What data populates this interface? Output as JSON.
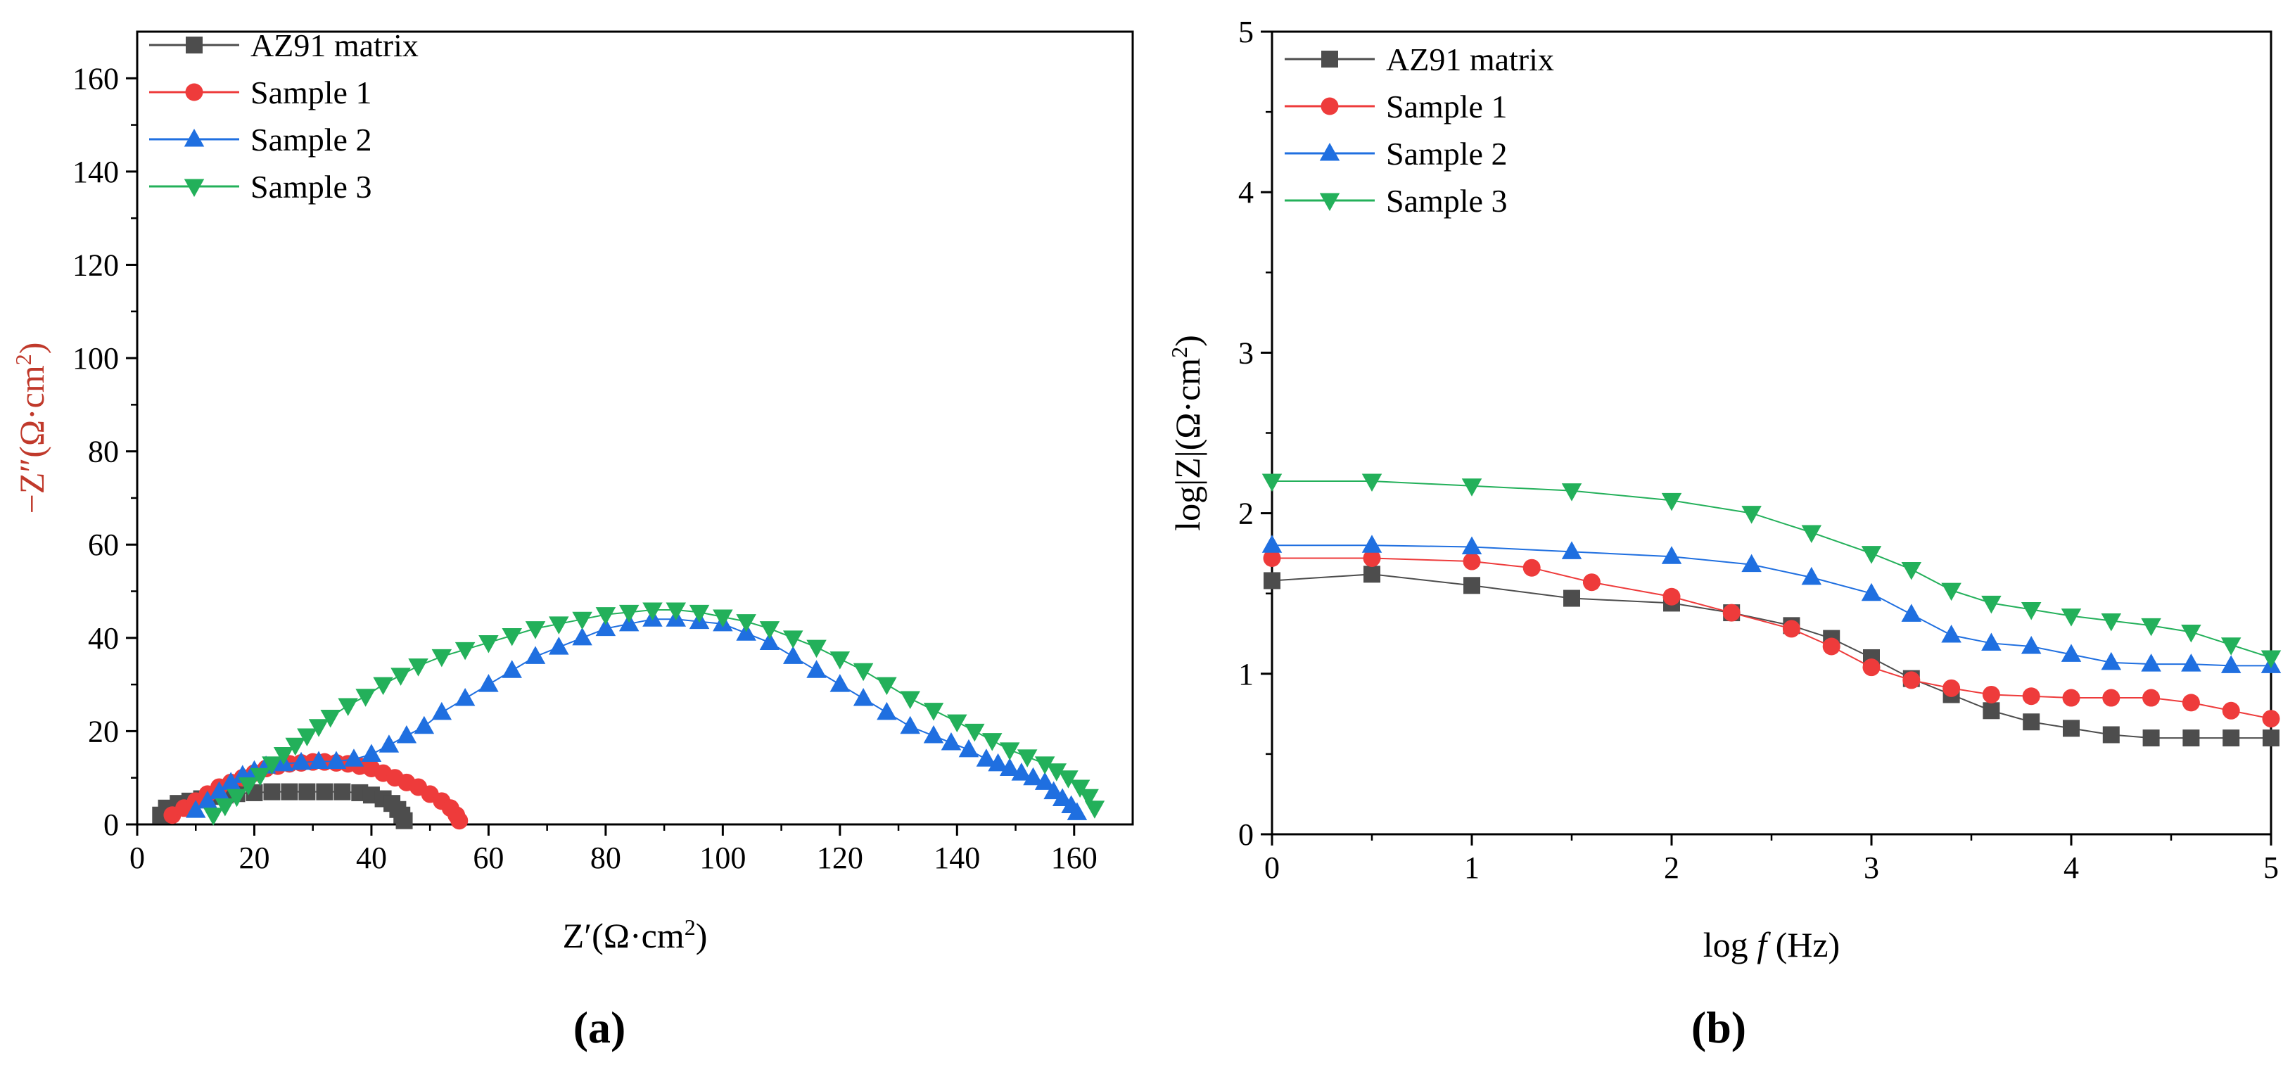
{
  "chart_data": [
    {
      "type": "scatter",
      "panel_label": "(a)",
      "title": "",
      "xlabel": {
        "base": "Z′(Ω·cm",
        "sup": "2",
        "tail": ")"
      },
      "ylabel": {
        "base": "−Z″(Ω·cm",
        "sup": "2",
        "tail": ")"
      },
      "xlim": [
        0,
        170
      ],
      "ylim": [
        0,
        170
      ],
      "xticks": [
        0,
        20,
        40,
        60,
        80,
        100,
        120,
        140,
        160
      ],
      "yticks": [
        0,
        20,
        40,
        60,
        80,
        100,
        120,
        140,
        160
      ],
      "legend_position": "top-left",
      "series": [
        {
          "name": "AZ91 matrix",
          "color": "#4d4d4d",
          "marker": "square",
          "x": [
            4,
            5,
            7,
            9,
            11,
            13,
            15,
            17,
            20,
            23,
            26,
            29,
            32,
            35,
            38,
            40,
            42,
            43.5,
            44.5,
            45.2,
            45.6
          ],
          "y": [
            2,
            3.5,
            4.5,
            5,
            5.5,
            6,
            6.3,
            6.6,
            6.8,
            7,
            7,
            7,
            7,
            7,
            6.8,
            6.3,
            5.5,
            4.5,
            3.2,
            2,
            0.8
          ]
        },
        {
          "name": "Sample 1",
          "color": "#ee3b3b",
          "marker": "circle",
          "x": [
            6,
            8,
            10,
            12,
            14,
            16,
            18,
            20,
            22,
            24,
            26,
            28,
            30,
            32,
            34,
            36,
            38,
            40,
            42,
            44,
            46,
            48,
            50,
            52,
            53.5,
            54.5,
            55
          ],
          "y": [
            2,
            3.5,
            5,
            6.5,
            8,
            9,
            10,
            11,
            12,
            12.5,
            13,
            13.2,
            13.4,
            13.4,
            13.2,
            13,
            12.5,
            12,
            11,
            10,
            9,
            8,
            6.5,
            5,
            3.5,
            2,
            0.8
          ]
        },
        {
          "name": "Sample 2",
          "color": "#1f6fe0",
          "marker": "triangle-up",
          "x": [
            10,
            12,
            14,
            16,
            18,
            20,
            22,
            25,
            28,
            31,
            34,
            37,
            40,
            43,
            46,
            49,
            52,
            56,
            60,
            64,
            68,
            72,
            76,
            80,
            84,
            88,
            92,
            96,
            100,
            104,
            108,
            112,
            116,
            120,
            124,
            128,
            132,
            136,
            139,
            142,
            145,
            147,
            149,
            151,
            153,
            155,
            156.5,
            158,
            159.5,
            160.5
          ],
          "y": [
            3,
            5,
            7,
            9,
            10.5,
            11.5,
            12.5,
            13,
            13.3,
            13.5,
            13.5,
            14,
            15,
            17,
            19,
            21,
            24,
            27,
            30,
            33,
            36,
            38,
            40,
            42,
            43,
            44,
            44,
            43.5,
            43,
            41,
            39,
            36,
            33,
            30,
            27,
            24,
            21,
            19,
            17.5,
            16,
            14,
            13,
            12,
            11,
            10,
            9,
            7,
            5.5,
            4,
            2.5
          ]
        },
        {
          "name": "Sample 3",
          "color": "#23b05a",
          "marker": "triangle-down",
          "x": [
            13,
            15,
            17,
            19,
            21,
            23,
            25,
            27,
            29,
            31,
            33,
            36,
            39,
            42,
            45,
            48,
            52,
            56,
            60,
            64,
            68,
            72,
            76,
            80,
            84,
            88,
            92,
            96,
            100,
            104,
            108,
            112,
            116,
            120,
            124,
            128,
            132,
            136,
            140,
            143,
            146,
            149,
            152,
            155,
            157,
            159,
            161,
            162.5,
            163.5
          ],
          "y": [
            2,
            4,
            6,
            8.5,
            10.5,
            13,
            15,
            17,
            19,
            21,
            23,
            25.5,
            27.5,
            30,
            32,
            34,
            36,
            37.5,
            39,
            40.5,
            42,
            43,
            44,
            45,
            45.5,
            46,
            46,
            45.5,
            44.5,
            43.5,
            42,
            40,
            38,
            35.5,
            33,
            30,
            27,
            24.5,
            22,
            20,
            18,
            16,
            14.5,
            13,
            11.5,
            10,
            8,
            6,
            3.5
          ]
        }
      ]
    },
    {
      "type": "scatter",
      "panel_label": "(b)",
      "title": "",
      "xlabel": {
        "base": "log ",
        "italic": "f",
        "tail": " (Hz)"
      },
      "ylabel": {
        "base": "log|Z|(Ω·cm",
        "sup": "2",
        "tail": ")"
      },
      "xlim": [
        0,
        5
      ],
      "ylim": [
        0,
        5
      ],
      "xticks": [
        0,
        1,
        2,
        3,
        4,
        5
      ],
      "yticks": [
        0,
        1,
        2,
        3,
        4,
        5
      ],
      "legend_position": "top-left",
      "series": [
        {
          "name": "AZ91 matrix",
          "color": "#4d4d4d",
          "marker": "square",
          "x": [
            0,
            0.5,
            1.0,
            1.5,
            2.0,
            2.3,
            2.6,
            2.8,
            3.0,
            3.2,
            3.4,
            3.6,
            3.8,
            4.0,
            4.2,
            4.4,
            4.6,
            4.8,
            5.0
          ],
          "y": [
            1.58,
            1.62,
            1.55,
            1.47,
            1.44,
            1.38,
            1.3,
            1.22,
            1.1,
            0.97,
            0.87,
            0.77,
            0.7,
            0.66,
            0.62,
            0.6,
            0.6,
            0.6,
            0.6
          ]
        },
        {
          "name": "Sample 1",
          "color": "#ee3b3b",
          "marker": "circle",
          "x": [
            0,
            0.5,
            1.0,
            1.3,
            1.6,
            2.0,
            2.3,
            2.6,
            2.8,
            3.0,
            3.2,
            3.4,
            3.6,
            3.8,
            4.0,
            4.2,
            4.4,
            4.6,
            4.8,
            5.0
          ],
          "y": [
            1.72,
            1.72,
            1.7,
            1.66,
            1.57,
            1.48,
            1.38,
            1.28,
            1.17,
            1.04,
            0.96,
            0.91,
            0.87,
            0.86,
            0.85,
            0.85,
            0.85,
            0.82,
            0.77,
            0.72
          ]
        },
        {
          "name": "Sample 2",
          "color": "#1f6fe0",
          "marker": "triangle-up",
          "x": [
            0,
            0.5,
            1.0,
            1.5,
            2.0,
            2.4,
            2.7,
            3.0,
            3.2,
            3.4,
            3.6,
            3.8,
            4.0,
            4.2,
            4.4,
            4.6,
            4.8,
            5.0
          ],
          "y": [
            1.8,
            1.8,
            1.79,
            1.76,
            1.73,
            1.68,
            1.6,
            1.5,
            1.37,
            1.24,
            1.19,
            1.17,
            1.12,
            1.07,
            1.06,
            1.06,
            1.05,
            1.05
          ]
        },
        {
          "name": "Sample 3",
          "color": "#23b05a",
          "marker": "triangle-down",
          "x": [
            0,
            0.5,
            1.0,
            1.5,
            2.0,
            2.4,
            2.7,
            3.0,
            3.2,
            3.4,
            3.6,
            3.8,
            4.0,
            4.2,
            4.4,
            4.6,
            4.8,
            5.0
          ],
          "y": [
            2.2,
            2.2,
            2.17,
            2.14,
            2.08,
            2.0,
            1.88,
            1.75,
            1.65,
            1.52,
            1.44,
            1.4,
            1.36,
            1.33,
            1.3,
            1.26,
            1.18,
            1.1
          ]
        }
      ]
    }
  ]
}
